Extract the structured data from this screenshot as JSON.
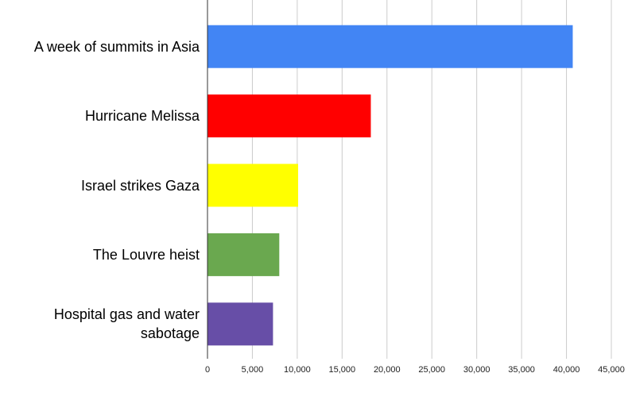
{
  "chart_data": {
    "type": "bar",
    "orientation": "horizontal",
    "categories": [
      "A week of summits in Asia",
      "Hurricane Melissa",
      "Israel strikes Gaza",
      "The Louvre heist",
      "Hospital gas and water sabotage"
    ],
    "values": [
      40700,
      18200,
      10100,
      8000,
      7300
    ],
    "colors": [
      "#4285f4",
      "#ff0000",
      "#ffff00",
      "#6aa84f",
      "#674ea7"
    ],
    "xlim": [
      0,
      45000
    ],
    "xticks": [
      0,
      {
        "value": 5000,
        "label": "5,000"
      },
      {
        "value": 10000,
        "label": "10,000"
      },
      {
        "value": 15000,
        "label": "15,000"
      },
      {
        "value": 20000,
        "label": "20,000"
      },
      {
        "value": 25000,
        "label": "25,000"
      },
      {
        "value": 30000,
        "label": "30,000"
      },
      {
        "value": 35000,
        "label": "35,000"
      },
      {
        "value": 40000,
        "label": "40,000"
      },
      {
        "value": 45000,
        "label": "45,000"
      }
    ],
    "grid": true
  }
}
